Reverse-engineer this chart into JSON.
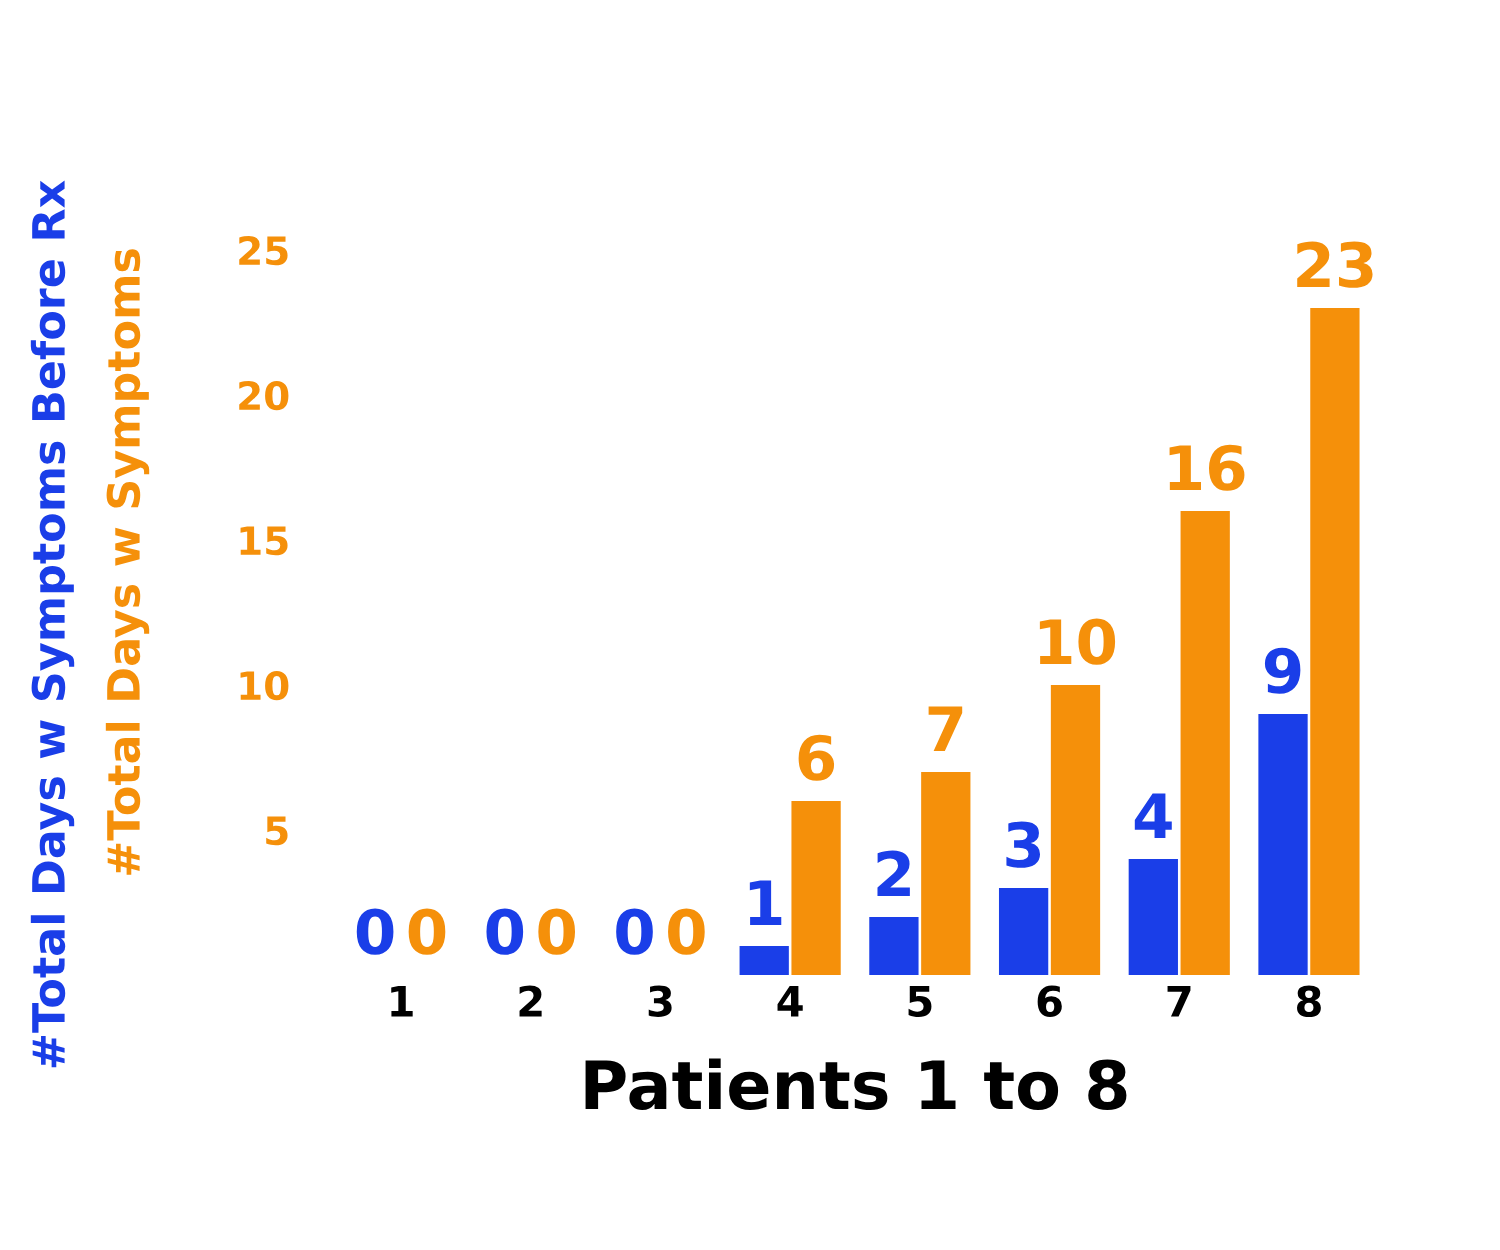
{
  "chart_data": {
    "type": "bar",
    "xlabel": "Patients 1 to 8",
    "ylabel": "#Total Days w Symptoms Before Rx",
    "y2label": "#Total Days w Symptoms",
    "categories": [
      "1",
      "2",
      "3",
      "4",
      "5",
      "6",
      "7",
      "8"
    ],
    "series": [
      {
        "color": "#1a3ee8",
        "values": [
          0,
          0,
          0,
          1,
          2,
          3,
          4,
          9
        ]
      },
      {
        "color": "#f5900a",
        "values": [
          0,
          0,
          0,
          6,
          7,
          10,
          16,
          23
        ]
      }
    ],
    "ylim": [
      0,
      25
    ],
    "yticks": [
      5,
      10,
      15,
      20,
      25
    ],
    "data_labels": true,
    "grid": false
  }
}
